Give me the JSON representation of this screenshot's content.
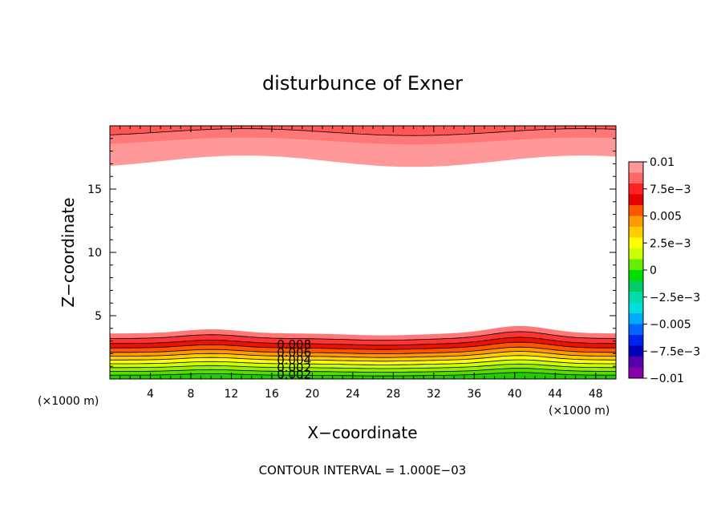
{
  "chart_data": {
    "type": "contour",
    "title": "disturbunce of Exner",
    "xlabel": "X−coordinate",
    "ylabel": "Z−coordinate",
    "x_unit": "(×1000 m)",
    "y_unit": "(×1000 m)",
    "xlim": [
      0,
      50
    ],
    "ylim": [
      0,
      20
    ],
    "x_ticks": [
      4,
      8,
      12,
      16,
      20,
      24,
      28,
      32,
      36,
      40,
      44,
      48
    ],
    "y_ticks": [
      5,
      10,
      15
    ],
    "contour_labels": [
      "0.008",
      "0.006",
      "0.004",
      "0.002",
      "0.002"
    ],
    "footer": "CONTOUR INTERVAL = 1.000E−03",
    "colorbar": {
      "labels": [
        "0.01",
        "7.5e−3",
        "0.005",
        "2.5e−3",
        "0",
        "−2.5e−3",
        "−0.005",
        "−7.5e−3",
        "−0.01"
      ],
      "values": [
        0.01,
        0.0075,
        0.005,
        0.0025,
        0,
        -0.0025,
        -0.005,
        -0.0075,
        -0.01
      ],
      "colors_top_to_bottom": [
        "#ff9999",
        "#ff6666",
        "#ff2222",
        "#e60000",
        "#ff5500",
        "#ff9900",
        "#ffcc00",
        "#ffff00",
        "#ccff00",
        "#66ee00",
        "#00dd00",
        "#00cc66",
        "#00ddaa",
        "#00dddd",
        "#00aaff",
        "#0066ff",
        "#0022ee",
        "#0000bb",
        "#5500aa",
        "#8800aa"
      ]
    },
    "bands_bottom": {
      "colors_low_to_high": [
        "#22cc00",
        "#55dd00",
        "#99ee00",
        "#ccff00",
        "#ffff00",
        "#ffcc00",
        "#ff9900",
        "#ff5500",
        "#ee1100",
        "#ff3333",
        "#ff7777"
      ],
      "base_km": [
        0,
        0.3,
        0.6,
        0.9,
        1.2,
        1.5,
        1.8,
        2.1,
        2.45,
        2.8,
        3.2,
        3.6
      ]
    },
    "bands_top": {
      "colors_high_to_low": [
        "#ff5555",
        "#ff7777",
        "#ff9999"
      ],
      "base_km": [
        20,
        19.5,
        18.8,
        17.2
      ]
    }
  }
}
